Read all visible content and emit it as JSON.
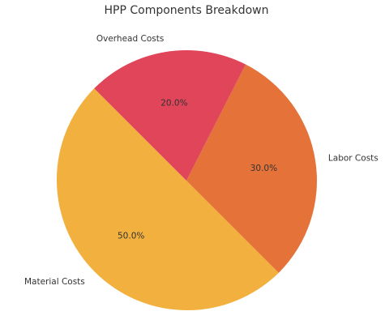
{
  "chart_data": {
    "type": "pie",
    "title": "HPP Components Breakdown",
    "categories": [
      "Material Costs",
      "Labor Costs",
      "Overhead Costs"
    ],
    "values": [
      50.0,
      30.0,
      20.0
    ],
    "value_labels": [
      "50.0%",
      "30.0%",
      "20.0%"
    ],
    "colors": [
      "#F2B03E",
      "#E47239",
      "#E0455A"
    ],
    "start_angle_deg": 135,
    "direction": "counterclockwise",
    "legend": "none"
  }
}
